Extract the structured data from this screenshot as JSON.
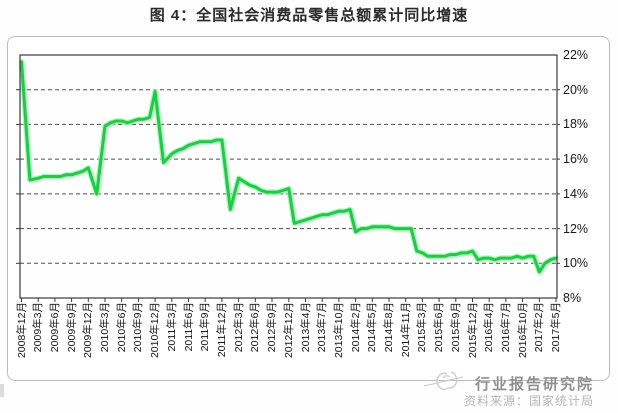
{
  "page": {
    "title": "图 4：全国社会消费品零售总额累计同比增速"
  },
  "watermark": {
    "brand": "行业报告研究院",
    "source": "资料来源：国家统计局",
    "color_brand": "#8f8f8f",
    "color_source": "#b5b5b5"
  },
  "chart_data": {
    "type": "line",
    "title": "图 4：全国社会消费品零售总额累计同比增速",
    "xlabel": "",
    "ylabel": "",
    "y_unit": "%",
    "ylim": [
      8,
      22
    ],
    "grid": "dashed-horizontal",
    "legend": "none",
    "value_axis_side": "right",
    "line_color": "#14d23d",
    "line_glow_color": "#a2f2b5",
    "y_ticks": [
      "22%",
      "20%",
      "18%",
      "16%",
      "14%",
      "12%",
      "10%",
      "8%"
    ],
    "x_tick_labels": [
      "2008年12月",
      "2009年3月",
      "2009年6月",
      "2009年9月",
      "2009年12月",
      "2010年3月",
      "2010年6月",
      "2010年9月",
      "2010年12月",
      "2011年3月",
      "2011年6月",
      "2011年9月",
      "2011年12月",
      "2012年3月",
      "2012年6月",
      "2012年9月",
      "2012年12月",
      "2013年4月",
      "2013年7月",
      "2013年10月",
      "2014年2月",
      "2014年5月",
      "2014年8月",
      "2014年11月",
      "2015年3月",
      "2015年6月",
      "2015年9月",
      "2015年12月",
      "2016年4月",
      "2016年7月",
      "2016年10月",
      "2017年2月",
      "2017年5月"
    ],
    "series": [
      {
        "name": "全国社会消费品零售总额累计同比增速",
        "months": [
          "2008年12月",
          "2009年2月",
          "2009年3月",
          "2009年4月",
          "2009年5月",
          "2009年6月",
          "2009年7月",
          "2009年8月",
          "2009年9月",
          "2009年10月",
          "2009年11月",
          "2009年12月",
          "2010年2月",
          "2010年3月",
          "2010年4月",
          "2010年5月",
          "2010年6月",
          "2010年7月",
          "2010年8月",
          "2010年9月",
          "2010年10月",
          "2010年11月",
          "2010年12月",
          "2011年2月",
          "2011年3月",
          "2011年4月",
          "2011年5月",
          "2011年6月",
          "2011年7月",
          "2011年8月",
          "2011年9月",
          "2011年10月",
          "2011年11月",
          "2011年12月",
          "2012年2月",
          "2012年3月",
          "2012年4月",
          "2012年5月",
          "2012年6月",
          "2012年7月",
          "2012年8月",
          "2012年9月",
          "2012年10月",
          "2012年11月",
          "2012年12月",
          "2013年2月",
          "2013年3月",
          "2013年4月",
          "2013年5月",
          "2013年6月",
          "2013年7月",
          "2013年8月",
          "2013年9月",
          "2013年10月",
          "2013年11月",
          "2013年12月",
          "2014年2月",
          "2014年3月",
          "2014年4月",
          "2014年5月",
          "2014年6月",
          "2014年7月",
          "2014年8月",
          "2014年9月",
          "2014年10月",
          "2014年11月",
          "2014年12月",
          "2015年2月",
          "2015年3月",
          "2015年4月",
          "2015年5月",
          "2015年6月",
          "2015年7月",
          "2015年8月",
          "2015年9月",
          "2015年10月",
          "2015年11月",
          "2015年12月",
          "2016年2月",
          "2016年3月",
          "2016年4月",
          "2016年5月",
          "2016年6月",
          "2016年7月",
          "2016年8月",
          "2016年9月",
          "2016年10月",
          "2016年11月",
          "2016年12月",
          "2017年2月",
          "2017年3月",
          "2017年4月",
          "2017年5月"
        ],
        "values": [
          21.6,
          14.8,
          14.9,
          15.0,
          15.0,
          15.0,
          15.0,
          15.1,
          15.1,
          15.2,
          15.3,
          15.5,
          14.0,
          17.9,
          18.1,
          18.2,
          18.2,
          18.1,
          18.2,
          18.3,
          18.3,
          18.4,
          19.9,
          15.8,
          16.3,
          16.5,
          16.6,
          16.8,
          16.9,
          17.0,
          17.0,
          17.0,
          17.1,
          17.1,
          13.1,
          14.9,
          14.7,
          14.5,
          14.4,
          14.2,
          14.1,
          14.1,
          14.1,
          14.2,
          14.3,
          12.3,
          12.4,
          12.5,
          12.6,
          12.7,
          12.8,
          12.8,
          12.9,
          13.0,
          13.0,
          13.1,
          11.8,
          12.0,
          12.0,
          12.1,
          12.1,
          12.1,
          12.1,
          12.0,
          12.0,
          12.0,
          12.0,
          10.7,
          10.6,
          10.4,
          10.4,
          10.4,
          10.4,
          10.5,
          10.5,
          10.6,
          10.6,
          10.7,
          10.2,
          10.3,
          10.3,
          10.2,
          10.3,
          10.3,
          10.3,
          10.4,
          10.3,
          10.4,
          10.4,
          9.5,
          10.0,
          10.2,
          10.3
        ]
      }
    ]
  }
}
